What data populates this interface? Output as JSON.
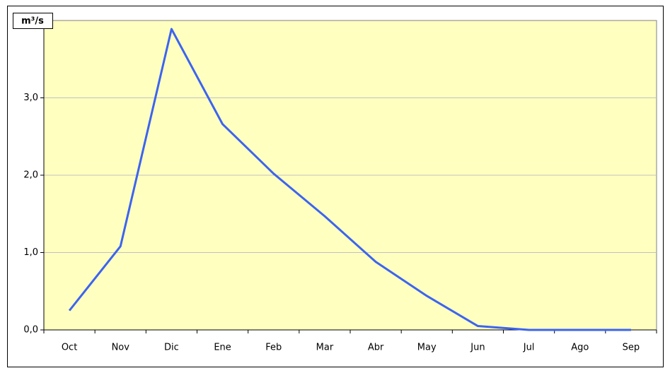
{
  "chart_data": {
    "type": "line",
    "y_label": "m³/s",
    "categories": [
      "Oct",
      "Nov",
      "Dic",
      "Ene",
      "Feb",
      "Mar",
      "Abr",
      "May",
      "Jun",
      "Jul",
      "Ago",
      "Sep"
    ],
    "series": [
      {
        "color": "#3c64f0",
        "values": [
          0.25,
          1.08,
          3.89,
          2.66,
          2.02,
          1.47,
          0.88,
          0.44,
          0.05,
          0.0,
          0.0,
          0.0
        ]
      }
    ],
    "ylim": [
      0,
      4
    ],
    "yticks": [
      {
        "value": 0,
        "label": "0,0"
      },
      {
        "value": 1,
        "label": "1,0"
      },
      {
        "value": 2,
        "label": "2,0"
      },
      {
        "value": 3,
        "label": "3,0"
      }
    ],
    "grid": true,
    "background": "#ffffc0"
  }
}
